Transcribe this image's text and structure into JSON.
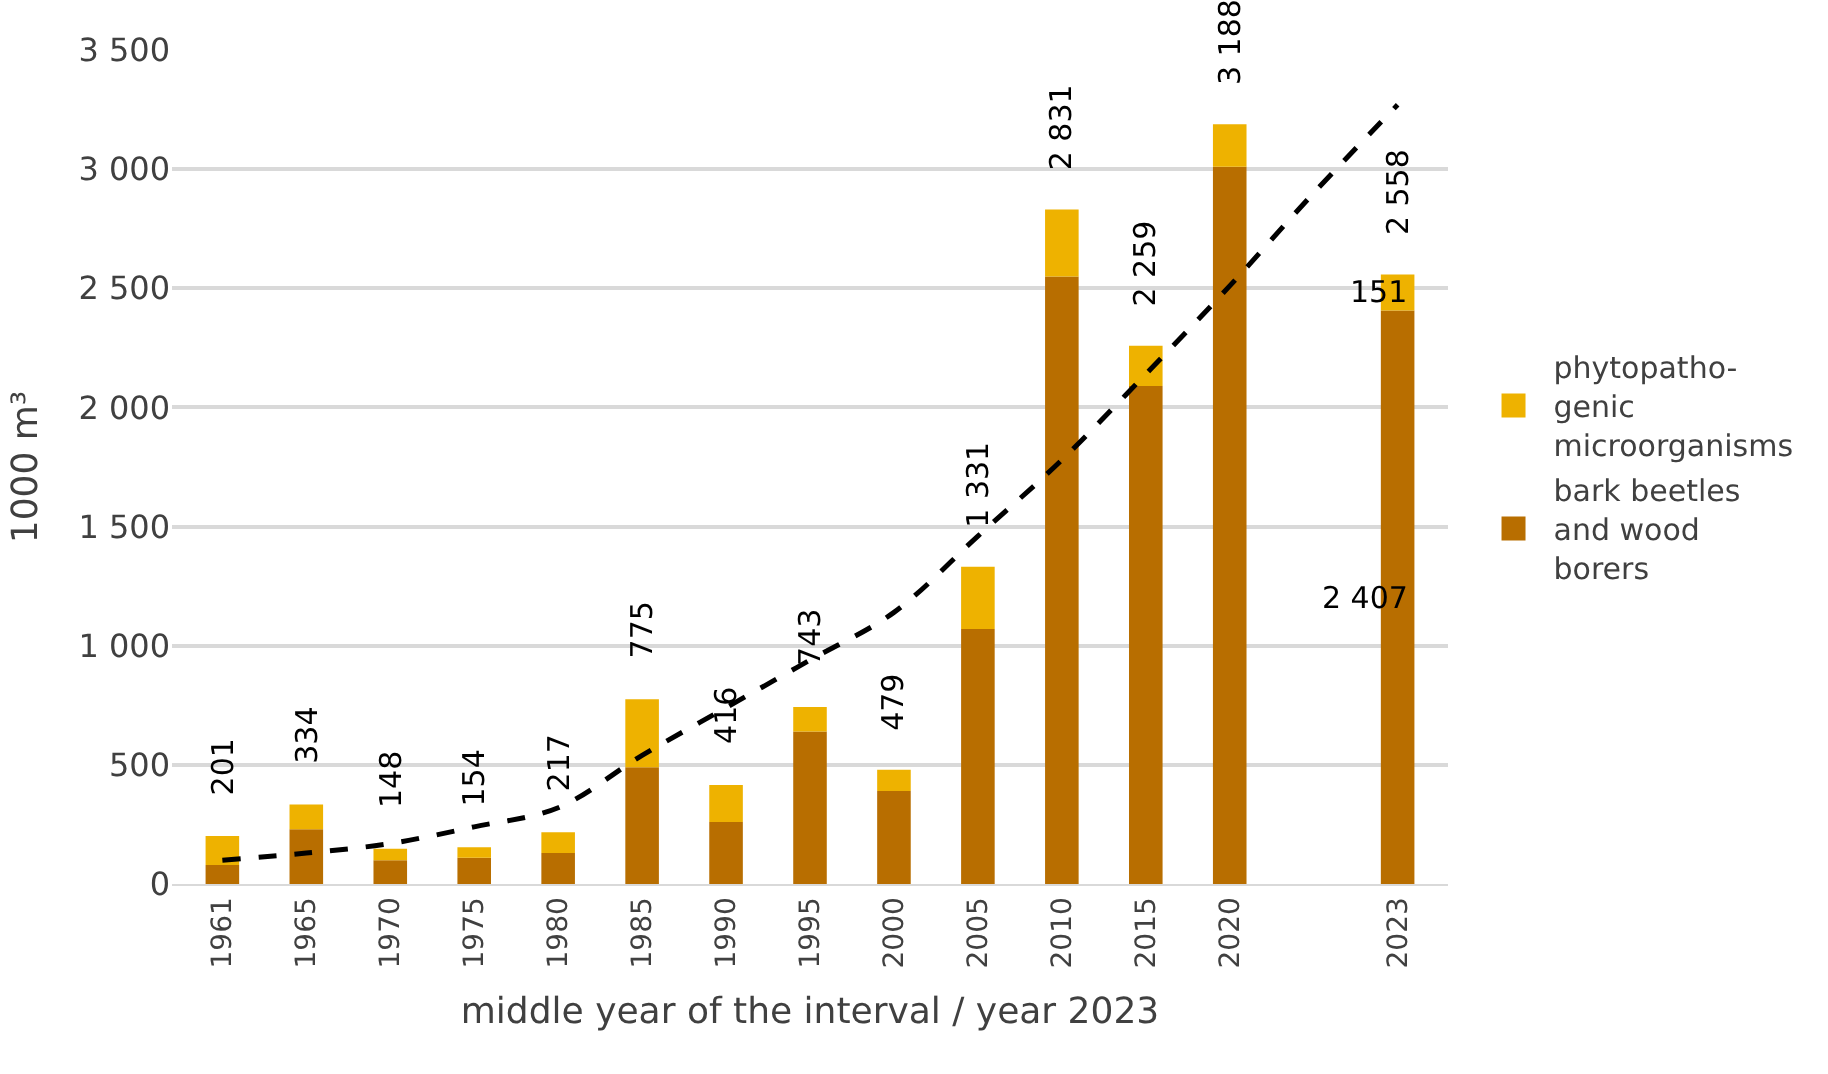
{
  "chart_data": {
    "type": "bar",
    "stacked": true,
    "xlabel": "middle year of the interval / year 2023",
    "ylabel": "1000 m³",
    "categories": [
      "1961",
      "1965",
      "1970",
      "1975",
      "1980",
      "1985",
      "1990",
      "1995",
      "2000",
      "2005",
      "2010",
      "2015",
      "2020",
      null,
      "2023"
    ],
    "series": [
      {
        "name": "bark beetles\nand wood\nborers",
        "color": "#b86e00",
        "values": [
          80,
          230,
          100,
          110,
          130,
          490,
          260,
          640,
          390,
          1070,
          2550,
          2090,
          3010,
          null,
          2407
        ],
        "value_labels": [
          null,
          null,
          null,
          null,
          null,
          null,
          null,
          null,
          null,
          null,
          null,
          null,
          null,
          null,
          "2 407"
        ]
      },
      {
        "name": "phytopatho-\ngenic\nmicroorganisms",
        "color": "#eeb200",
        "values": [
          121,
          104,
          48,
          44,
          87,
          285,
          156,
          103,
          89,
          261,
          281,
          169,
          178,
          null,
          151
        ],
        "value_labels": [
          null,
          null,
          null,
          null,
          null,
          null,
          null,
          null,
          null,
          null,
          null,
          null,
          null,
          null,
          "151"
        ]
      },
      {
        "type": "line",
        "color": "#000000",
        "line_style": "dashed",
        "values": [
          100,
          130,
          170,
          240,
          320,
          540,
          740,
          940,
          1140,
          1460,
          1780,
          2140,
          2510,
          2900,
          3270
        ]
      }
    ],
    "totals": [
      "201",
      "334",
      "148",
      "154",
      "217",
      "775",
      "416",
      "743",
      "479",
      "1 331",
      "2 831",
      "2 259",
      "3 188",
      null,
      "2 558"
    ],
    "ylim": [
      0,
      3500
    ],
    "yticks": [
      0,
      500,
      {
        "value": 1000,
        "label": "1 000"
      },
      {
        "value": 1500,
        "label": "1 500"
      },
      {
        "value": 2000,
        "label": "2 000"
      },
      {
        "value": 2500,
        "label": "2 500"
      },
      {
        "value": 3000,
        "label": "3 000"
      },
      {
        "value": 3500,
        "label": "3 500"
      }
    ],
    "grid": "y",
    "legend": "right",
    "marker": "none"
  }
}
